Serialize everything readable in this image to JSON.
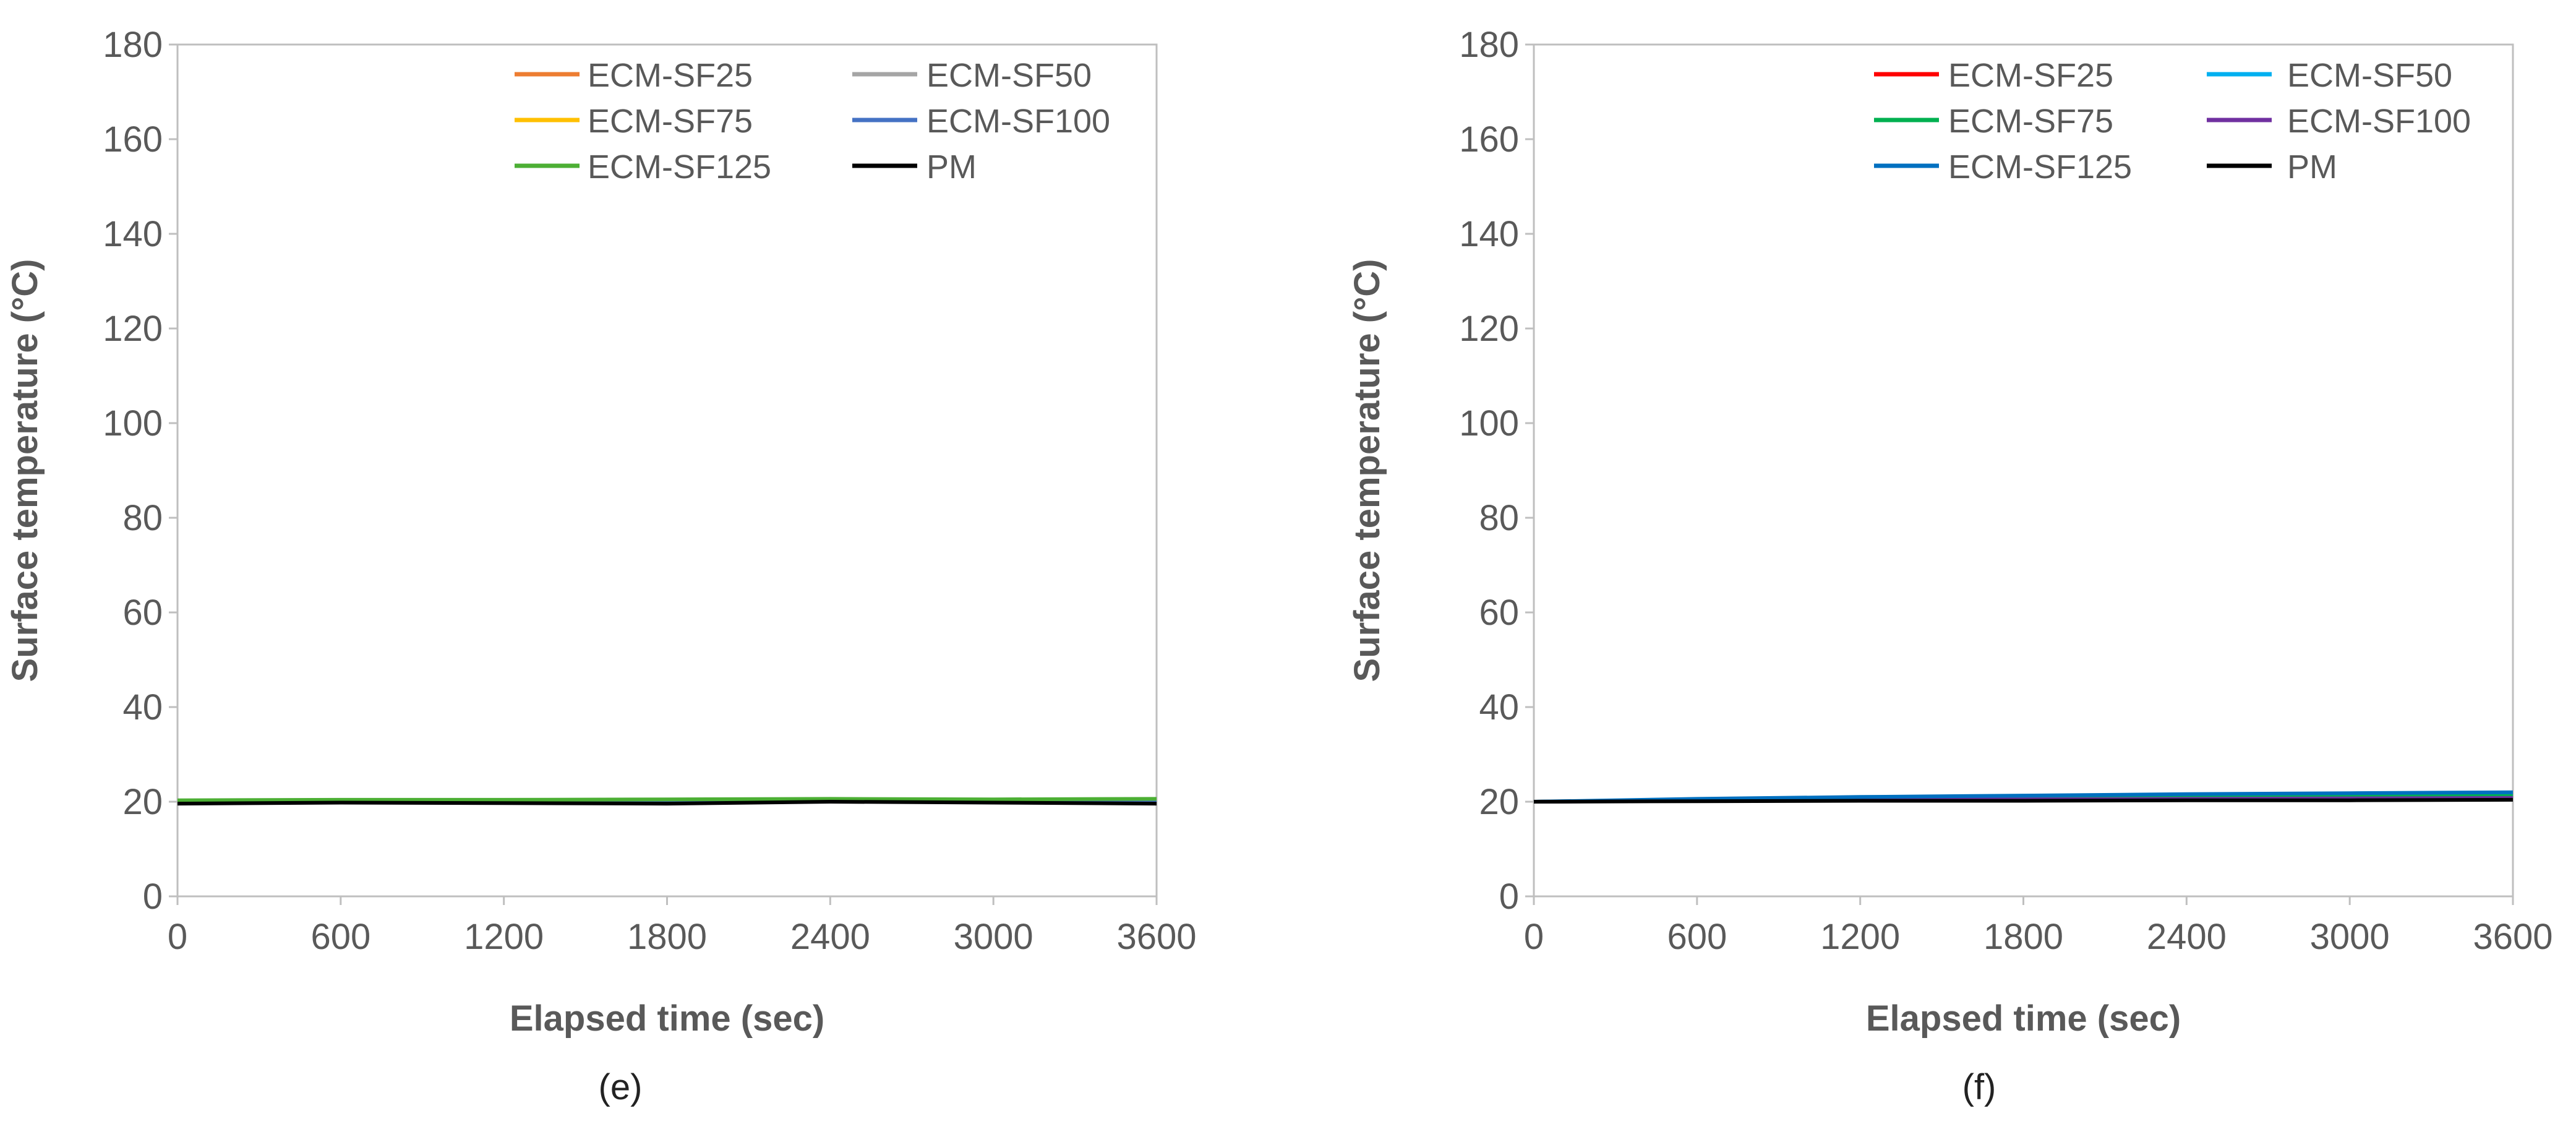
{
  "chart_data": [
    {
      "type": "line",
      "caption": "(e)",
      "xlabel": "Elapsed time (sec)",
      "ylabel": "Surface temperature (°C)",
      "xlim": [
        0,
        3600
      ],
      "ylim": [
        0,
        180
      ],
      "x_ticks": [
        0,
        600,
        1200,
        1800,
        2400,
        3000,
        3600
      ],
      "y_ticks": [
        0,
        20,
        40,
        60,
        80,
        100,
        120,
        140,
        160,
        180
      ],
      "grid": false,
      "legend_position": "top-right",
      "series": [
        {
          "name": "ECM-SF25",
          "color": "#ED7D31",
          "x": [
            0,
            600,
            1200,
            1800,
            2400,
            3000,
            3600
          ],
          "y": [
            20.0,
            20.1,
            20.0,
            20.1,
            20.2,
            20.1,
            20.1
          ]
        },
        {
          "name": "ECM-SF50",
          "color": "#A5A5A5",
          "x": [
            0,
            600,
            1200,
            1800,
            2400,
            3000,
            3600
          ],
          "y": [
            20.0,
            20.0,
            20.1,
            20.0,
            20.1,
            20.1,
            20.0
          ]
        },
        {
          "name": "ECM-SF75",
          "color": "#FFC000",
          "x": [
            0,
            600,
            1200,
            1800,
            2400,
            3000,
            3600
          ],
          "y": [
            20.1,
            20.2,
            20.1,
            20.2,
            20.3,
            20.2,
            20.2
          ]
        },
        {
          "name": "ECM-SF100",
          "color": "#4472C4",
          "x": [
            0,
            600,
            1200,
            1800,
            2400,
            3000,
            3600
          ],
          "y": [
            19.9,
            20.0,
            20.0,
            20.1,
            20.1,
            20.0,
            20.0
          ]
        },
        {
          "name": "ECM-SF125",
          "color": "#4CAF34",
          "x": [
            0,
            600,
            1200,
            1800,
            2400,
            3000,
            3600
          ],
          "y": [
            20.3,
            20.4,
            20.4,
            20.5,
            20.6,
            20.5,
            20.6
          ]
        },
        {
          "name": "PM",
          "color": "#000000",
          "x": [
            0,
            600,
            1200,
            1800,
            2400,
            3000,
            3600
          ],
          "y": [
            19.6,
            19.8,
            19.7,
            19.6,
            20.0,
            19.8,
            19.6
          ]
        }
      ]
    },
    {
      "type": "line",
      "caption": "(f)",
      "xlabel": "Elapsed time (sec)",
      "ylabel": "Surface temperature (°C)",
      "xlim": [
        0,
        3600
      ],
      "ylim": [
        0,
        180
      ],
      "x_ticks": [
        0,
        600,
        1200,
        1800,
        2400,
        3000,
        3600
      ],
      "y_ticks": [
        0,
        20,
        40,
        60,
        80,
        100,
        120,
        140,
        160,
        180
      ],
      "grid": false,
      "legend_position": "top-right",
      "series": [
        {
          "name": "ECM-SF25",
          "color": "#FF0000",
          "x": [
            0,
            600,
            1200,
            1800,
            2400,
            3000,
            3600
          ],
          "y": [
            20.0,
            20.3,
            20.5,
            20.6,
            20.8,
            20.9,
            21.0
          ]
        },
        {
          "name": "ECM-SF50",
          "color": "#00B0F0",
          "x": [
            0,
            600,
            1200,
            1800,
            2400,
            3000,
            3600
          ],
          "y": [
            20.0,
            20.4,
            20.7,
            20.9,
            21.1,
            21.3,
            21.4
          ]
        },
        {
          "name": "ECM-SF75",
          "color": "#00B050",
          "x": [
            0,
            600,
            1200,
            1800,
            2400,
            3000,
            3600
          ],
          "y": [
            20.0,
            20.3,
            20.6,
            20.8,
            21.0,
            21.1,
            21.2
          ]
        },
        {
          "name": "ECM-SF100",
          "color": "#7030A0",
          "x": [
            0,
            600,
            1200,
            1800,
            2400,
            3000,
            3600
          ],
          "y": [
            20.0,
            20.2,
            20.4,
            20.5,
            20.6,
            20.7,
            20.8
          ]
        },
        {
          "name": "ECM-SF125",
          "color": "#0070C0",
          "x": [
            0,
            600,
            1200,
            1800,
            2400,
            3000,
            3600
          ],
          "y": [
            20.0,
            20.6,
            21.0,
            21.3,
            21.6,
            21.8,
            22.0
          ]
        },
        {
          "name": "PM",
          "color": "#000000",
          "x": [
            0,
            600,
            1200,
            1800,
            2400,
            3000,
            3600
          ],
          "y": [
            20.0,
            20.1,
            20.2,
            20.2,
            20.3,
            20.3,
            20.4
          ]
        }
      ]
    }
  ]
}
